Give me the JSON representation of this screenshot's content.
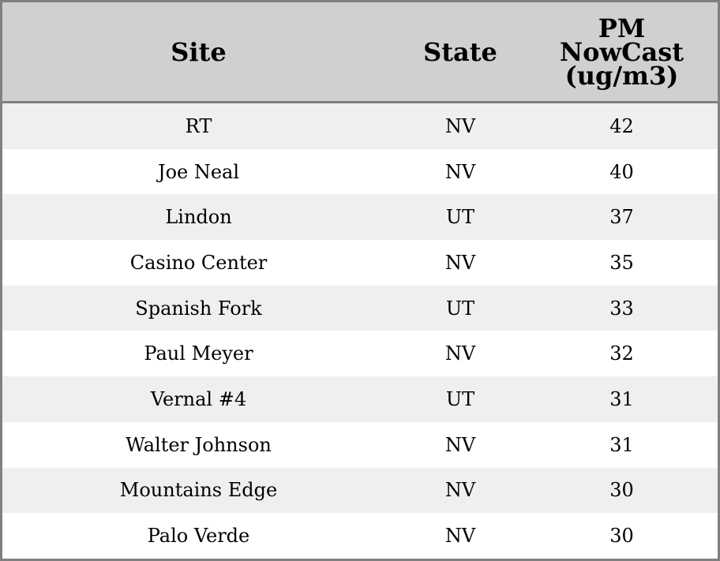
{
  "columns": [
    "Site",
    "State",
    "PM NowCast (ug/m3)"
  ],
  "rows": [
    {
      "site": "RT",
      "state": "NV",
      "pm": "42"
    },
    {
      "site": "Joe Neal",
      "state": "NV",
      "pm": "40"
    },
    {
      "site": "Lindon",
      "state": "UT",
      "pm": "37"
    },
    {
      "site": "Casino Center",
      "state": "NV",
      "pm": "35"
    },
    {
      "site": "Spanish Fork",
      "state": "UT",
      "pm": "33"
    },
    {
      "site": "Paul Meyer",
      "state": "NV",
      "pm": "32"
    },
    {
      "site": "Vernal #4",
      "state": "UT",
      "pm": "31"
    },
    {
      "site": "Walter Johnson",
      "state": "NV",
      "pm": "31"
    },
    {
      "site": "Mountains Edge",
      "state": "NV",
      "pm": "30"
    },
    {
      "site": "Palo Verde",
      "state": "NV",
      "pm": "30"
    }
  ]
}
